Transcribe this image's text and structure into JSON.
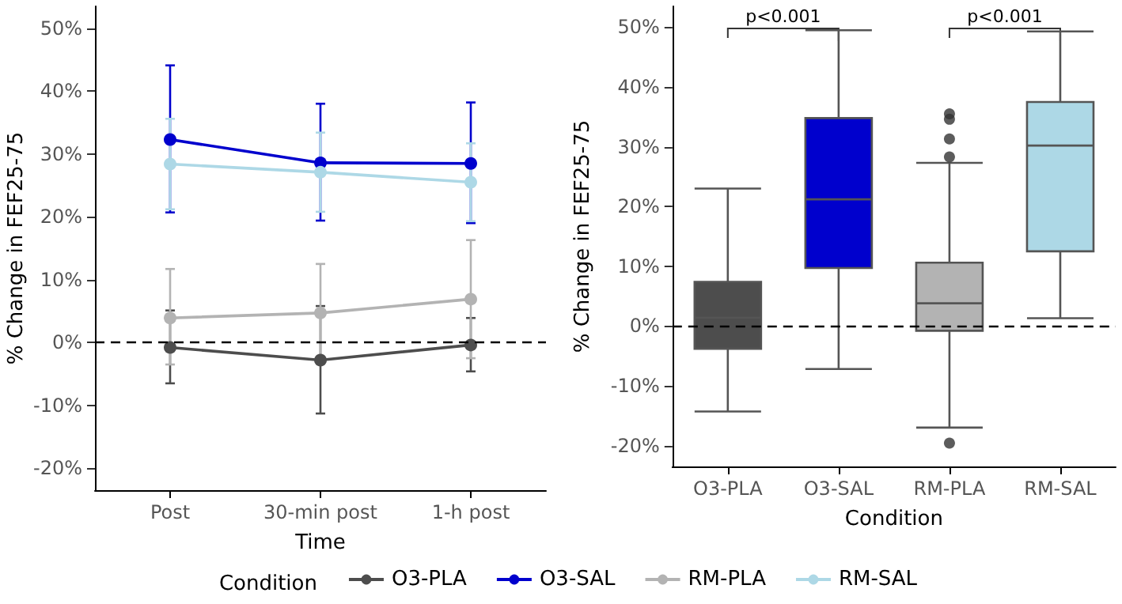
{
  "chart_data": [
    {
      "type": "line",
      "xlabel": "Time",
      "ylabel": "% Change in FEF25-75",
      "legend_title": "Condition",
      "legend": "bottom",
      "marker": "circle",
      "grid": false,
      "categories": [
        "Post",
        "30-min post",
        "1-h post"
      ],
      "ylim": [
        -23.5,
        53.5
      ],
      "yticks": [
        {
          "value": -20,
          "label": "-20%"
        },
        {
          "value": -10,
          "label": "-10%"
        },
        {
          "value": 0,
          "label": "0%"
        },
        {
          "value": 10,
          "label": "10%"
        },
        {
          "value": 20,
          "label": "20%"
        },
        {
          "value": 30,
          "label": "30%"
        },
        {
          "value": 40,
          "label": "40%"
        },
        {
          "value": 50,
          "label": "50%"
        }
      ],
      "ref_lines": [
        {
          "axis": "y",
          "value": 0,
          "color": "#000000",
          "line_style": "dashed"
        }
      ],
      "series": [
        {
          "name": "O3-PLA",
          "color": "#4d4d4d",
          "values": [
            -0.8,
            -2.8,
            -0.4
          ],
          "errors": [
            [
              -6.5,
              5.1
            ],
            [
              -11.3,
              5.8
            ],
            [
              -4.6,
              3.9
            ]
          ]
        },
        {
          "name": "O3-SAL",
          "color": "#0000cd",
          "values": [
            32.3,
            28.6,
            28.5
          ],
          "errors": [
            [
              20.7,
              44.1
            ],
            [
              19.4,
              38
            ],
            [
              19,
              38.2
            ]
          ]
        },
        {
          "name": "RM-PLA",
          "color": "#b3b3b3",
          "values": [
            3.9,
            4.7,
            6.9
          ],
          "errors": [
            [
              -3.5,
              11.7
            ],
            [
              -3,
              12.5
            ],
            [
              -2.5,
              16.3
            ]
          ]
        },
        {
          "name": "RM-SAL",
          "color": "#add8e6",
          "values": [
            28.4,
            27.1,
            25.5
          ],
          "errors": [
            [
              21.2,
              35.6
            ],
            [
              20.8,
              33.4
            ],
            [
              19.3,
              31.7
            ]
          ]
        }
      ]
    },
    {
      "type": "box",
      "xlabel": "Condition",
      "ylabel": "% Change in FEF25-75",
      "grid": false,
      "categories": [
        "O3-PLA",
        "O3-SAL",
        "RM-PLA",
        "RM-SAL"
      ],
      "colors": [
        "#4d4d4d",
        "#0000cd",
        "#b3b3b3",
        "#add8e6"
      ],
      "ylim": [
        -23.5,
        53.5
      ],
      "yticks": [
        {
          "value": -20,
          "label": "-20%"
        },
        {
          "value": -10,
          "label": "-10%"
        },
        {
          "value": 0,
          "label": "0%"
        },
        {
          "value": 10,
          "label": "10%"
        },
        {
          "value": 20,
          "label": "20%"
        },
        {
          "value": 30,
          "label": "30%"
        },
        {
          "value": 40,
          "label": "40%"
        },
        {
          "value": 50,
          "label": "50%"
        }
      ],
      "ref_lines": [
        {
          "axis": "y",
          "value": 0,
          "color": "#000000",
          "line_style": "dashed"
        }
      ],
      "annotations": [
        "p<0.001",
        "p<0.001"
      ],
      "boxes": [
        {
          "low": -14.3,
          "q1": -3.8,
          "median": 1.4,
          "q3": 7.4,
          "high": 23
        },
        {
          "low": -7.2,
          "q1": 9.7,
          "median": 21.2,
          "q3": 34.8,
          "high": 49.5
        },
        {
          "low": -17,
          "q1": -0.8,
          "median": 3.8,
          "q3": 10.6,
          "high": 27.3,
          "outliers": [
            28.3,
            31.3,
            34.6,
            35.5,
            -19.6
          ]
        },
        {
          "low": 1.3,
          "q1": 12.5,
          "median": 30.2,
          "q3": 37.5,
          "high": 49.3
        }
      ]
    }
  ]
}
